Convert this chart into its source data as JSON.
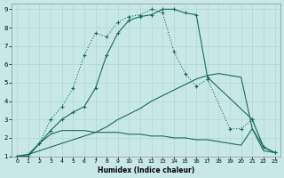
{
  "xlabel": "Humidex (Indice chaleur)",
  "bg_color": "#c8e8e8",
  "grid_color": "#b0d8d0",
  "line_color": "#1a6b5a",
  "xlim": [
    -0.5,
    23.5
  ],
  "ylim": [
    1,
    9.3
  ],
  "xticks": [
    0,
    1,
    2,
    3,
    4,
    5,
    6,
    7,
    8,
    9,
    10,
    11,
    12,
    13,
    14,
    15,
    16,
    17,
    18,
    19,
    20,
    21,
    22,
    23
  ],
  "yticks": [
    1,
    2,
    3,
    4,
    5,
    6,
    7,
    8,
    9
  ],
  "line1_x": [
    0,
    1,
    2,
    3,
    4,
    5,
    6,
    7,
    8,
    9,
    10,
    11,
    12,
    13,
    14,
    15,
    16,
    17,
    21,
    22,
    23
  ],
  "line1_y": [
    1,
    1,
    1.7,
    2.4,
    3.0,
    3.4,
    3.7,
    4.7,
    6.5,
    7.7,
    8.4,
    8.6,
    8.7,
    9.0,
    9.0,
    8.8,
    8.7,
    5.3,
    3.0,
    1.5,
    1.2
  ],
  "line2_x": [
    0,
    1,
    2,
    3,
    4,
    5,
    6,
    7,
    8,
    9,
    10,
    11,
    12,
    13,
    14,
    15,
    16,
    17,
    19,
    20,
    21,
    22,
    23
  ],
  "line2_y": [
    1,
    1,
    1.7,
    3.0,
    3.7,
    4.7,
    6.5,
    7.7,
    7.5,
    8.3,
    8.6,
    8.7,
    9.0,
    8.8,
    6.7,
    5.5,
    4.8,
    5.2,
    2.5,
    2.5,
    3.0,
    1.5,
    1.2
  ],
  "line3_x": [
    0,
    1,
    2,
    3,
    4,
    5,
    6,
    7,
    8,
    9,
    10,
    11,
    12,
    13,
    14,
    15,
    16,
    17,
    18,
    19,
    20,
    21,
    22,
    23
  ],
  "line3_y": [
    1,
    1.1,
    1.3,
    1.5,
    1.7,
    1.9,
    2.1,
    2.3,
    2.6,
    3.0,
    3.3,
    3.6,
    4.0,
    4.3,
    4.6,
    4.9,
    5.2,
    5.4,
    5.5,
    5.4,
    5.3,
    2.5,
    1.5,
    1.2
  ],
  "line4_x": [
    0,
    1,
    2,
    3,
    4,
    5,
    6,
    7,
    8,
    9,
    10,
    11,
    12,
    13,
    14,
    15,
    16,
    17,
    18,
    19,
    20,
    21,
    22,
    23
  ],
  "line4_y": [
    1,
    1.1,
    1.7,
    2.2,
    2.4,
    2.4,
    2.4,
    2.3,
    2.3,
    2.3,
    2.2,
    2.2,
    2.1,
    2.1,
    2.0,
    2.0,
    1.9,
    1.9,
    1.8,
    1.7,
    1.6,
    2.5,
    1.3,
    1.2
  ]
}
